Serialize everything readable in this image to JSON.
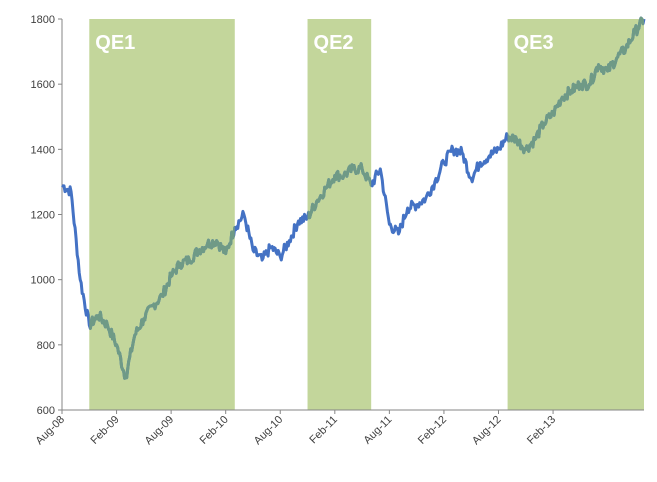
{
  "chart_data": {
    "type": "line",
    "title": "",
    "xlabel": "",
    "ylabel": "",
    "ylim": [
      600,
      1800
    ],
    "yticks": [
      600,
      800,
      1000,
      1200,
      1400,
      1600,
      1800
    ],
    "xticks": [
      "Aug-08",
      "Feb-09",
      "Aug-09",
      "Feb-10",
      "Aug-10",
      "Feb-11",
      "Aug-11",
      "Feb-12",
      "Aug-12",
      "Feb-13"
    ],
    "xrange": [
      "2008-08",
      "2013-12"
    ],
    "grid": false,
    "colors": {
      "line": "#4472c4",
      "line_in_band": "#6f9a86",
      "band": "#c3d69b"
    },
    "bands": [
      {
        "label": "QE1",
        "start": "2008-11",
        "end": "2010-03"
      },
      {
        "label": "QE2",
        "start": "2010-11",
        "end": "2011-06"
      },
      {
        "label": "QE3",
        "start": "2012-09",
        "end": "2013-12"
      }
    ],
    "series": [
      {
        "x": [
          "2008-08",
          "2008-09",
          "2008-10",
          "2008-11",
          "2008-12",
          "2009-01",
          "2009-02",
          "2009-03",
          "2009-04",
          "2009-05",
          "2009-06",
          "2009-07",
          "2009-08",
          "2009-09",
          "2009-10",
          "2009-11",
          "2009-12",
          "2010-01",
          "2010-02",
          "2010-03",
          "2010-04",
          "2010-05",
          "2010-06",
          "2010-07",
          "2010-08",
          "2010-09",
          "2010-10",
          "2010-11",
          "2010-12",
          "2011-01",
          "2011-02",
          "2011-03",
          "2011-04",
          "2011-05",
          "2011-06",
          "2011-07",
          "2011-08",
          "2011-09",
          "2011-10",
          "2011-11",
          "2011-12",
          "2012-01",
          "2012-02",
          "2012-03",
          "2012-04",
          "2012-05",
          "2012-06",
          "2012-07",
          "2012-08",
          "2012-09",
          "2012-10",
          "2012-11",
          "2012-12",
          "2013-01",
          "2013-02",
          "2013-03",
          "2013-04",
          "2013-05",
          "2013-06",
          "2013-07",
          "2013-08",
          "2013-09",
          "2013-10",
          "2013-11",
          "2013-12"
        ],
        "values": [
          1290,
          1270,
          1000,
          860,
          890,
          860,
          800,
          700,
          830,
          880,
          920,
          950,
          1010,
          1050,
          1060,
          1090,
          1110,
          1120,
          1080,
          1160,
          1200,
          1090,
          1060,
          1100,
          1070,
          1120,
          1180,
          1190,
          1240,
          1280,
          1320,
          1320,
          1340,
          1340,
          1290,
          1340,
          1170,
          1140,
          1220,
          1230,
          1250,
          1300,
          1360,
          1400,
          1390,
          1310,
          1360,
          1380,
          1400,
          1440,
          1430,
          1400,
          1430,
          1480,
          1510,
          1560,
          1580,
          1600,
          1600,
          1660,
          1640,
          1680,
          1710,
          1760,
          1800
        ]
      }
    ]
  }
}
